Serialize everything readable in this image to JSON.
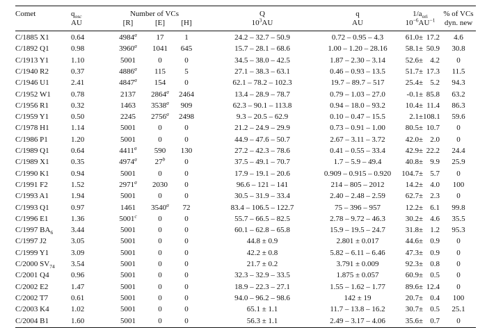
{
  "header": {
    "comet": "Comet",
    "qosc_label": "q",
    "qosc_sub": "osc",
    "qosc_unit": "AU",
    "num_vcs": "Number of VCs",
    "r_label": "[R]",
    "e_label": "[E]",
    "h_label": "[H]",
    "Q_label": "Q",
    "Q_unit_num": "10",
    "Q_unit_exp": "3",
    "Q_unit_rest": "AU",
    "q_label": "q",
    "q_unit": "AU",
    "aori_label": "1/a",
    "aori_sub": "ori",
    "aori_unit_1": "10",
    "aori_unit_2": "−6",
    "aori_unit_3": "AU",
    "aori_unit_4": "−1",
    "pct_label": "% of VCs",
    "pct_label2": "dyn. new"
  },
  "rows": [
    {
      "comet": "C/1885 X1",
      "qosc": "0.64",
      "r": "4984",
      "rsup": "a",
      "e": "17",
      "esup": "",
      "h": "1",
      "Q": "24.2 – 32.7 – 50.9",
      "q": "0.72 – 0.95 – 4.3",
      "a": "61.0±",
      "ae": "17.2",
      "pct": "4.6"
    },
    {
      "comet": "C/1892 Q1",
      "qosc": "0.98",
      "r": "3960",
      "rsup": "a",
      "e": "1041",
      "esup": "",
      "h": "645",
      "Q": "15.7 – 28.1 – 68.6",
      "q": "1.00 – 1.20 – 28.16",
      "a": "58.1±",
      "ae": "50.9",
      "pct": "30.8"
    },
    {
      "comet": "C/1913 Y1",
      "qosc": "1.10",
      "r": "5001",
      "rsup": "",
      "e": "0",
      "esup": "",
      "h": "0",
      "Q": "34.5 – 38.0 – 42.5",
      "q": "1.87 – 2.30 – 3.14",
      "a": "52.6±",
      "ae": "4.2",
      "pct": "0"
    },
    {
      "comet": "C/1940 R2",
      "qosc": "0.37",
      "r": "4886",
      "rsup": "a",
      "e": "115",
      "esup": "",
      "h": "5",
      "Q": "27.1 – 38.3 – 63.1",
      "q": "0.46 – 0.93 – 13.5",
      "a": "51.7±",
      "ae": "17.3",
      "pct": "11.5"
    },
    {
      "comet": "C/1946 U1",
      "qosc": "2.41",
      "r": "4847",
      "rsup": "a",
      "e": "154",
      "esup": "",
      "h": "0",
      "Q": "62.1 – 78.2 – 102.3",
      "q": "19.7 – 89.7 – 517",
      "a": "25.4±",
      "ae": "5.2",
      "pct": "94.3"
    },
    {
      "comet": "C/1952 W1",
      "qosc": "0.78",
      "r": "2137",
      "rsup": "",
      "e": "2864",
      "esup": "a",
      "h": "2464",
      "Q": "13.4 – 28.9 – 78.7",
      "q": "0.79 – 1.03 – 27.0",
      "a": "-0.1±",
      "ae": "85.8",
      "pct": "63.2"
    },
    {
      "comet": "C/1956 R1",
      "qosc": "0.32",
      "r": "1463",
      "rsup": "",
      "e": "3538",
      "esup": "a",
      "h": "909",
      "Q": "62.3 – 90.1 – 113.8",
      "q": "0.94 – 18.0 – 93.2",
      "a": "10.4±",
      "ae": "11.4",
      "pct": "86.3"
    },
    {
      "comet": "C/1959 Y1",
      "qosc": "0.50",
      "r": "2245",
      "rsup": "",
      "e": "2756",
      "esup": "a",
      "h": "2498",
      "Q": "9.3 – 20.5 – 62.9",
      "q": "0.10 – 0.47 – 15.5",
      "a": "2.1±",
      "ae": "108.1",
      "pct": "59.6"
    },
    {
      "comet": "C/1978 H1",
      "qosc": "1.14",
      "r": "5001",
      "rsup": "",
      "e": "0",
      "esup": "",
      "h": "0",
      "Q": "21.2 – 24.9 – 29.9",
      "q": "0.73 – 0.91 – 1.00",
      "a": "80.5±",
      "ae": "10.7",
      "pct": "0"
    },
    {
      "comet": "C/1986 P1",
      "qosc": "1.20",
      "r": "5001",
      "rsup": "",
      "e": "0",
      "esup": "",
      "h": "0",
      "Q": "44.9 – 47.6 – 50.7",
      "q": "2.67 – 3.11 – 3.72",
      "a": "42.0±",
      "ae": "2.0",
      "pct": "0"
    },
    {
      "comet": "C/1989 Q1",
      "qosc": "0.64",
      "r": "4411",
      "rsup": "a",
      "e": "590",
      "esup": "",
      "h": "130",
      "Q": "27.2 – 42.3 – 78.6",
      "q": "0.41 – 0.55 – 33.4",
      "a": "42.9±",
      "ae": "22.2",
      "pct": "24.4"
    },
    {
      "comet": "C/1989 X1",
      "qosc": "0.35",
      "r": "4974",
      "rsup": "a",
      "e": "27",
      "esup": "b",
      "h": "0",
      "Q": "37.5 – 49.1 – 70.7",
      "q": "1.7 – 5.9 – 49.4",
      "a": "40.8±",
      "ae": "9.9",
      "pct": "25.9"
    },
    {
      "comet": "C/1990 K1",
      "qosc": "0.94",
      "r": "5001",
      "rsup": "",
      "e": "0",
      "esup": "",
      "h": "0",
      "Q": "17.9 – 19.1 – 20.6",
      "q": "0.909 – 0.915 – 0.920",
      "a": "104.7±",
      "ae": "5.7",
      "pct": "0"
    },
    {
      "comet": "C/1991 F2",
      "qosc": "1.52",
      "r": "2971",
      "rsup": "a",
      "e": "2030",
      "esup": "",
      "h": "0",
      "Q": "96.6 – 121 – 141",
      "q": "214 – 805 – 2012",
      "a": "14.2±",
      "ae": "4.0",
      "pct": "100"
    },
    {
      "comet": "C/1993 A1",
      "qosc": "1.94",
      "r": "5001",
      "rsup": "",
      "e": "0",
      "esup": "",
      "h": "0",
      "Q": "30.5 – 31.9 – 33.4",
      "q": "2.40 – 2.48 – 2.59",
      "a": "62.7±",
      "ae": "2.3",
      "pct": "0"
    },
    {
      "comet": "C/1993 Q1",
      "qosc": "0.97",
      "r": "1461",
      "rsup": "",
      "e": "3540",
      "esup": "a",
      "h": "72",
      "Q": "83.4 – 106.5 – 122.7",
      "q": "75 – 396 – 957",
      "a": "12.2±",
      "ae": "6.1",
      "pct": "99.8"
    },
    {
      "comet": "C/1996 E1",
      "qosc": "1.36",
      "r": "5001",
      "rsup": "c",
      "e": "0",
      "esup": "",
      "h": "0",
      "Q": "55.7 – 66.5 – 82.5",
      "q": "2.78 – 9.72 – 46.3",
      "a": "30.2±",
      "ae": "4.6",
      "pct": "35.5"
    },
    {
      "comet": "C/1997 BA6",
      "qosc": "3.44",
      "r": "5001",
      "rsup": "",
      "e": "0",
      "esup": "",
      "h": "0",
      "Q": "60.1 – 62.8 – 65.8",
      "q": "15.9 – 19.5 – 24.7",
      "a": "31.8±",
      "ae": "1.2",
      "pct": "95.3"
    },
    {
      "comet": "C/1997 J2",
      "qosc": "3.05",
      "r": "5001",
      "rsup": "",
      "e": "0",
      "esup": "",
      "h": "0",
      "Q": "44.8 ± 0.9",
      "q": "2.801 ± 0.017",
      "a": "44.6±",
      "ae": "0.9",
      "pct": "0"
    },
    {
      "comet": "C/1999 Y1",
      "qosc": "3.09",
      "r": "5001",
      "rsup": "",
      "e": "0",
      "esup": "",
      "h": "0",
      "Q": "42.2 ± 0.8",
      "q": "5.82 – 6.11 – 6.46",
      "a": "47.3±",
      "ae": "0.9",
      "pct": "0"
    },
    {
      "comet": "C/2000 SV74",
      "qosc": "3.54",
      "r": "5001",
      "rsup": "",
      "e": "0",
      "esup": "",
      "h": "0",
      "Q": "21.7 ± 0.2",
      "q": "3.791 ± 0.009",
      "a": "92.3±",
      "ae": "0.8",
      "pct": "0"
    },
    {
      "comet": "C/2001 Q4",
      "qosc": "0.96",
      "r": "5001",
      "rsup": "",
      "e": "0",
      "esup": "",
      "h": "0",
      "Q": "32.3 – 32.9 – 33.5",
      "q": "1.875 ± 0.057",
      "a": "60.9±",
      "ae": "0.5",
      "pct": "0"
    },
    {
      "comet": "C/2002 E2",
      "qosc": "1.47",
      "r": "5001",
      "rsup": "",
      "e": "0",
      "esup": "",
      "h": "0",
      "Q": "18.9 – 22.3 – 27.1",
      "q": "1.55 – 1.62 – 1.77",
      "a": "89.6±",
      "ae": "12.4",
      "pct": "0"
    },
    {
      "comet": "C/2002 T7",
      "qosc": "0.61",
      "r": "5001",
      "rsup": "",
      "e": "0",
      "esup": "",
      "h": "0",
      "Q": "94.0 – 96.2 – 98.6",
      "q": "142 ± 19",
      "a": "20.7±",
      "ae": "0.4",
      "pct": "100"
    },
    {
      "comet": "C/2003 K4",
      "qosc": "1.02",
      "r": "5001",
      "rsup": "",
      "e": "0",
      "esup": "",
      "h": "0",
      "Q": "65.1 ± 1.1",
      "q": "11.7 – 13.8 – 16.2",
      "a": "30.7±",
      "ae": "0.5",
      "pct": "25.1"
    },
    {
      "comet": "C/2004 B1",
      "qosc": "1.60",
      "r": "5001",
      "rsup": "",
      "e": "0",
      "esup": "",
      "h": "0",
      "Q": "56.3 ± 1.1",
      "q": "2.49 – 3.17 – 4.06",
      "a": "35.6±",
      "ae": "0.7",
      "pct": "0"
    }
  ]
}
